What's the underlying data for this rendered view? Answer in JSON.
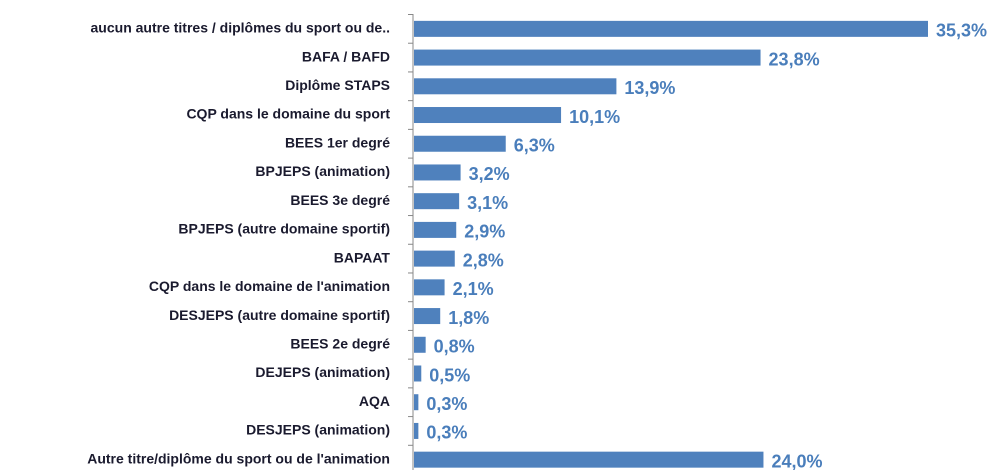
{
  "chart_data": {
    "type": "bar",
    "orientation": "horizontal",
    "color": "#4f81bd",
    "categories": [
      "aucun autre titres / diplômes du sport ou de..",
      "BAFA / BAFD",
      "Diplôme STAPS",
      "CQP dans le domaine du sport",
      "BEES 1er degré",
      "BPJEPS (animation)",
      "BEES 3e degré",
      "BPJEPS (autre domaine sportif)",
      "BAPAAT",
      "CQP dans le domaine de l'animation",
      "DESJEPS (autre domaine sportif)",
      "BEES 2e degré",
      "DEJEPS (animation)",
      "AQA",
      "DESJEPS (animation)",
      "Autre titre/diplôme du sport ou de l'animation"
    ],
    "values": [
      35.3,
      23.8,
      13.9,
      10.1,
      6.3,
      3.2,
      3.1,
      2.9,
      2.8,
      2.1,
      1.8,
      0.8,
      0.5,
      0.3,
      0.3,
      24.0
    ],
    "value_labels": [
      "35,3%",
      "23,8%",
      "13,9%",
      "10,1%",
      "6,3%",
      "3,2%",
      "3,1%",
      "2,9%",
      "2,8%",
      "2,1%",
      "1,8%",
      "0,8%",
      "0,5%",
      "0,3%",
      "0,3%",
      "24,0%"
    ]
  }
}
